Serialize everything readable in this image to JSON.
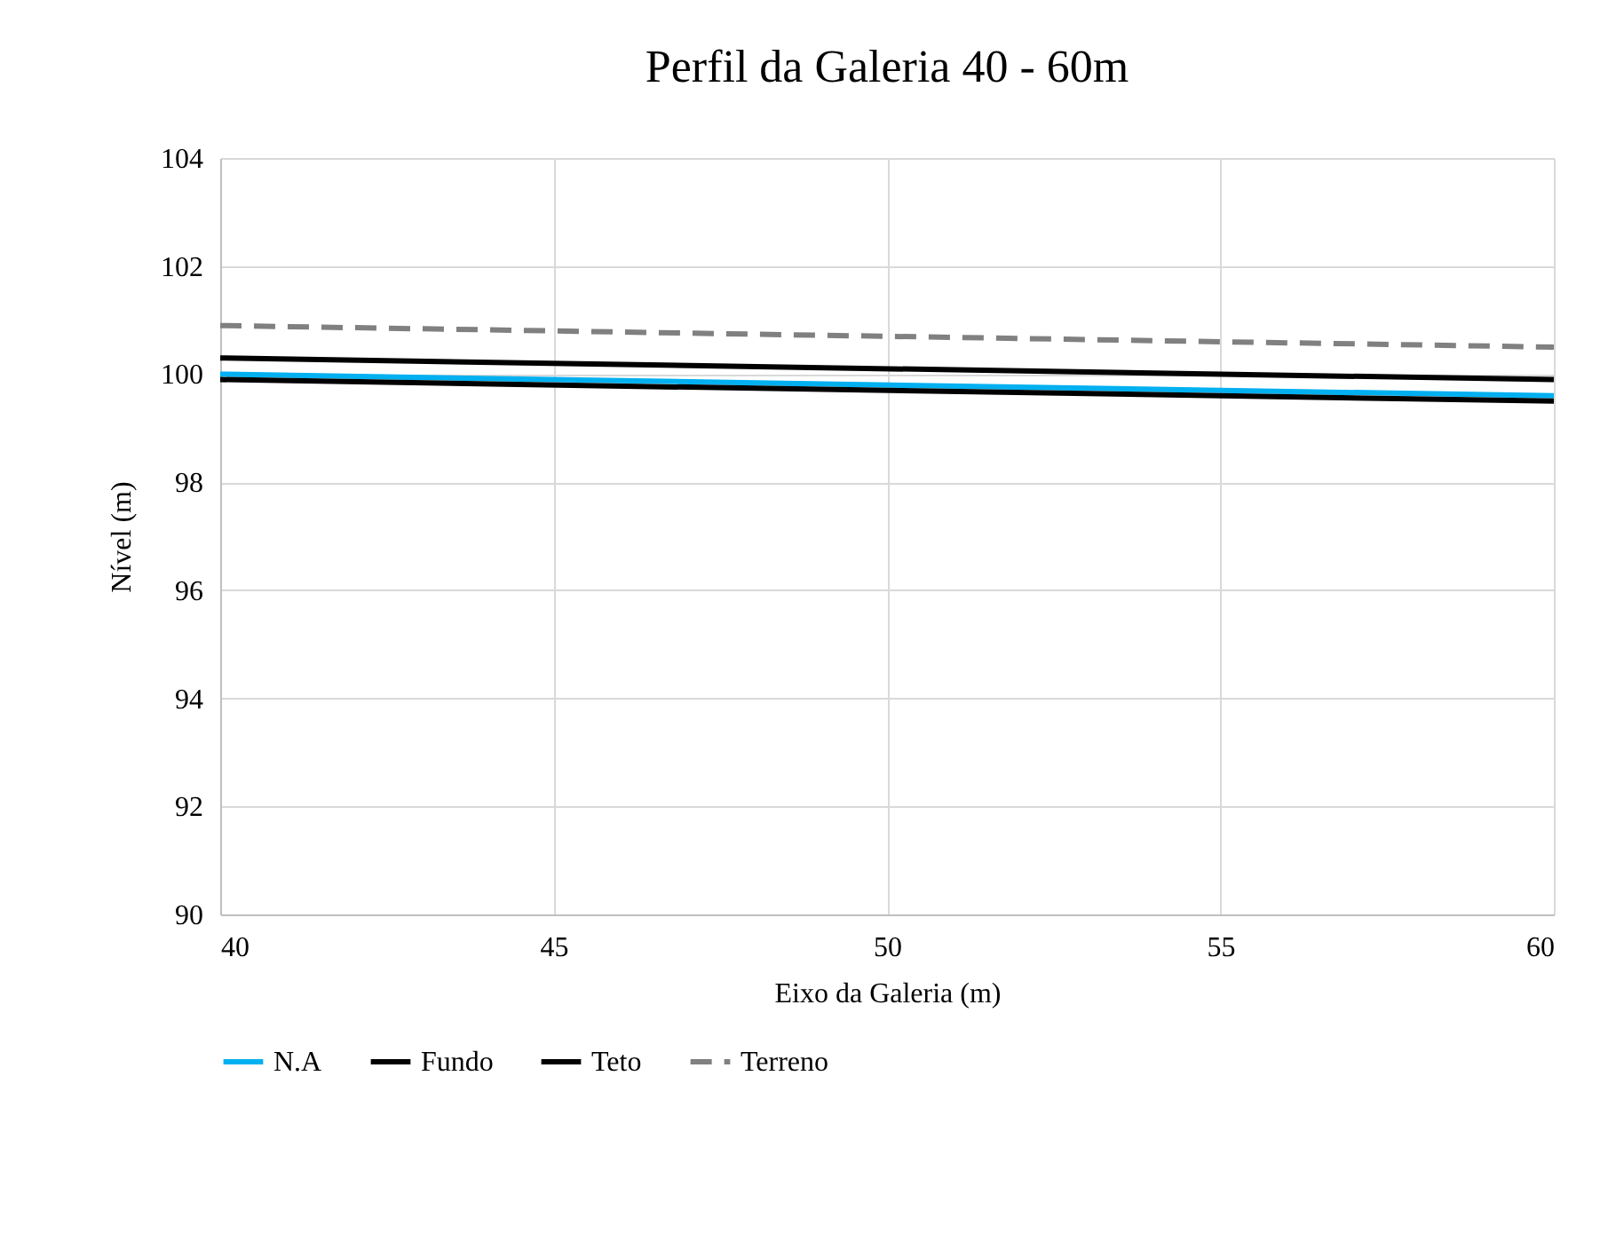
{
  "chart_data": {
    "type": "line",
    "title": "Perfil da Galeria 40 - 60m",
    "xlabel": "Eixo da Galeria (m)",
    "ylabel": "Nível (m)",
    "x": [
      40,
      60
    ],
    "series": [
      {
        "name": "N.A",
        "color": "#00b0f0",
        "values": [
          100.0,
          99.6
        ],
        "line_style": "solid"
      },
      {
        "name": "Fundo",
        "color": "#000000",
        "values": [
          99.9,
          99.5
        ],
        "line_style": "solid"
      },
      {
        "name": "Teto",
        "color": "#000000",
        "values": [
          100.3,
          99.9
        ],
        "line_style": "solid"
      },
      {
        "name": "Terreno",
        "color": "#808080",
        "values": [
          100.9,
          100.5
        ],
        "line_style": "dashed"
      }
    ],
    "xlim": [
      40,
      60
    ],
    "xticks": [
      40,
      45,
      50,
      55,
      60
    ],
    "ylim": [
      90,
      104
    ],
    "yticks": [
      90,
      92,
      94,
      96,
      98,
      100,
      102,
      104
    ],
    "grid": true,
    "legend": "bottom",
    "marker": "none"
  }
}
